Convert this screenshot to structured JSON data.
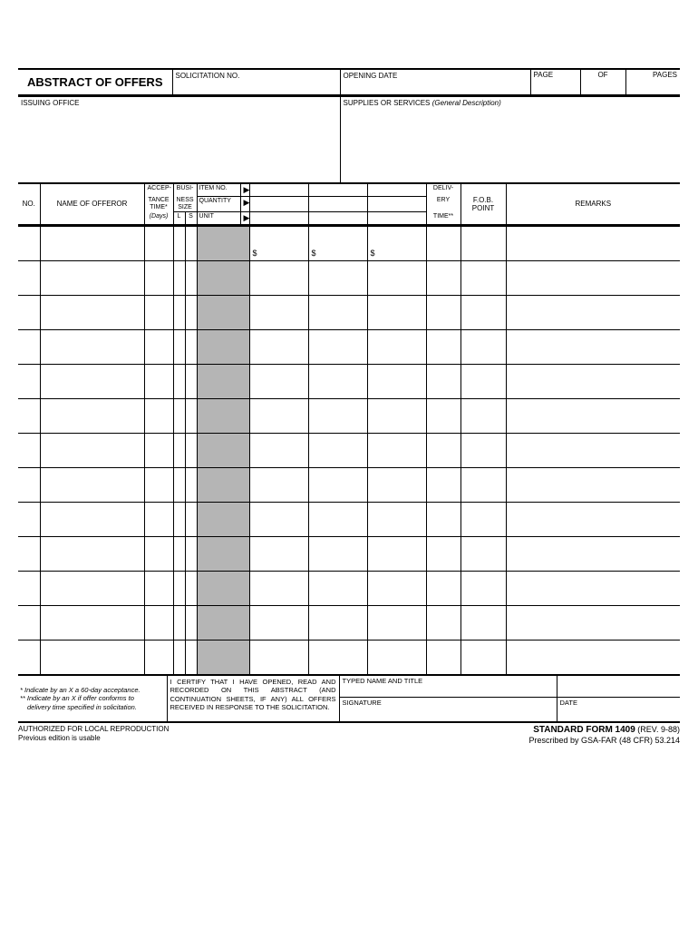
{
  "header": {
    "title": "ABSTRACT OF OFFERS",
    "solicitation_label": "SOLICITATION NO.",
    "opening_date_label": "OPENING DATE",
    "page_label": "PAGE",
    "of_label": "OF",
    "pages_label": "PAGES",
    "issuing_office_label": "ISSUING OFFICE",
    "supplies_label": "SUPPLIES OR SERVICES",
    "supplies_italic": "(General Description)"
  },
  "cols": {
    "no": "NO.",
    "name_of_offeror": "NAME OF OFFEROR",
    "acceptance_l1": "ACCEP-",
    "acceptance_l2": "TANCE",
    "acceptance_l3": "TIME*",
    "acceptance_l4": "(Days)",
    "business_l1": "BUSI-",
    "business_l2": "NESS",
    "business_l3": "SIZE",
    "bus_L": "L",
    "bus_S": "S",
    "item_no": "ITEM NO.",
    "quantity": "QUANTITY",
    "unit": "UNIT",
    "deliv_l1": "DELIV-",
    "deliv_l2": "ERY",
    "deliv_l3": "TIME**",
    "fob_l1": "F.O.B.",
    "fob_l2": "POINT",
    "remarks": "REMARKS",
    "dollar": "$"
  },
  "footer": {
    "note1": "* Indicate by an X a 60-day acceptance.",
    "note2": "** Indicate by an X if offer conforms to",
    "note3": "delivery time specified in solicitation.",
    "cert": "I CERTIFY THAT I HAVE OPENED, READ AND RECORDED ON THIS ABSTRACT (AND CONTINUATION SHEETS, IF ANY) ALL OFFERS RECEIVED IN RESPONSE TO THE SOLICITATION.",
    "typed_name": "TYPED NAME AND TITLE",
    "signature": "SIGNATURE",
    "date": "DATE",
    "auth": "AUTHORIZED FOR LOCAL REPRODUCTION",
    "prev": "Previous edition is usable",
    "form_no_bold": "STANDARD FORM 1409",
    "form_no_rev": " (REV. 9-88)",
    "prescribed": "Prescribed by GSA-FAR (48 CFR) 53.214"
  },
  "style": {
    "shaded_bg": "#b5b5b5"
  }
}
